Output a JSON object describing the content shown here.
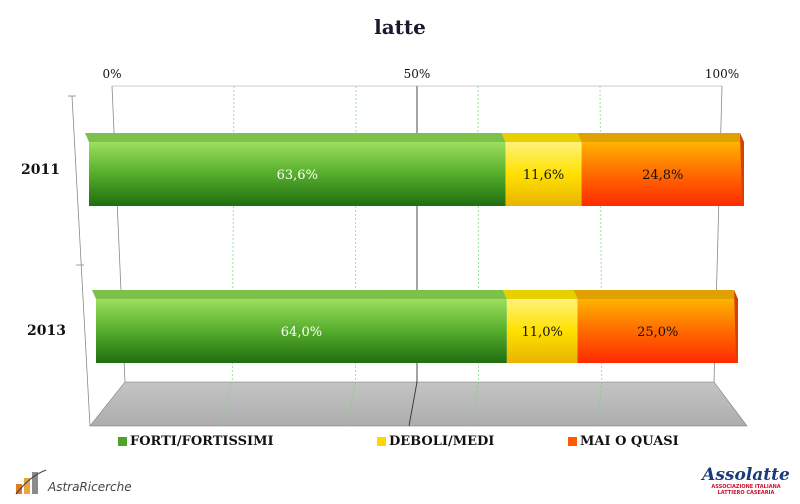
{
  "chart_data": {
    "type": "bar",
    "orientation": "horizontal",
    "stacked": "percent",
    "title": "latte",
    "categories": [
      "2011",
      "2013"
    ],
    "series": [
      {
        "name": "FORTI/FORTISSIMI",
        "values": [
          63.6,
          64.0
        ],
        "labels": [
          "63,6%",
          "64,0%"
        ],
        "color": "#4fa32a"
      },
      {
        "name": "DEBOLI/MEDI",
        "values": [
          11.6,
          11.0
        ],
        "labels": [
          "11,6%",
          "11,0%"
        ],
        "color": "#ffd700"
      },
      {
        "name": "MAI O QUASI",
        "values": [
          24.8,
          25.0
        ],
        "labels": [
          "24,8%",
          "25,0%"
        ],
        "color": "#ff5a00"
      }
    ],
    "xticks": [
      "0%",
      "50%",
      "100%"
    ],
    "xlim": [
      0,
      100
    ],
    "grid": true,
    "legend": "bottom"
  },
  "footer": {
    "left_brand": "AstraRicerche",
    "right_brand": "Assolatte",
    "right_sub1": "ASSOCIAZIONE ITALIANA",
    "right_sub2": "LATTIERO CASEARIA"
  }
}
